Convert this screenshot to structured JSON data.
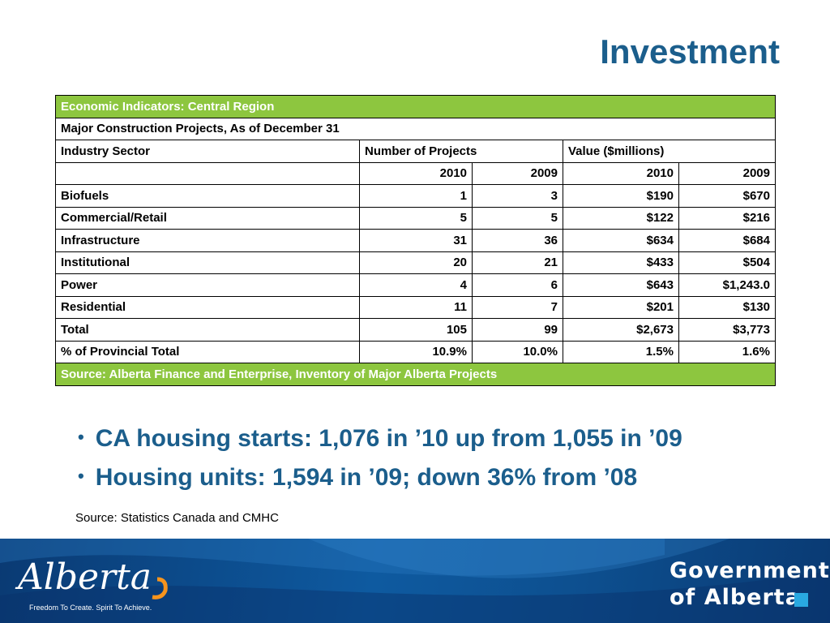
{
  "slide": {
    "title": "Investment"
  },
  "table": {
    "header_title": "Economic Indicators: Central Region",
    "subtitle": "Major Construction Projects, As of December 31",
    "col_sector": "Industry Sector",
    "col_projects": "Number of Projects",
    "col_value": "Value ($millions)",
    "years": [
      "2010",
      "2009",
      "2010",
      "2009"
    ],
    "rows": [
      {
        "sector": "Biofuels",
        "projects_2010": "1",
        "projects_2009": "3",
        "value_2010": "$190",
        "value_2009": "$670"
      },
      {
        "sector": "Commercial/Retail",
        "projects_2010": "5",
        "projects_2009": "5",
        "value_2010": "$122",
        "value_2009": "$216"
      },
      {
        "sector": "Infrastructure",
        "projects_2010": "31",
        "projects_2009": "36",
        "value_2010": "$634",
        "value_2009": "$684"
      },
      {
        "sector": "Institutional",
        "projects_2010": "20",
        "projects_2009": "21",
        "value_2010": "$433",
        "value_2009": "$504"
      },
      {
        "sector": "Power",
        "projects_2010": "4",
        "projects_2009": "6",
        "value_2010": "$643",
        "value_2009": "$1,243.0"
      },
      {
        "sector": "Residential",
        "projects_2010": "11",
        "projects_2009": "7",
        "value_2010": "$201",
        "value_2009": "$130"
      },
      {
        "sector": "Total",
        "projects_2010": "105",
        "projects_2009": "99",
        "value_2010": "$2,673",
        "value_2009": "$3,773"
      },
      {
        "sector": "% of Provincial Total",
        "projects_2010": "10.9%",
        "projects_2009": "10.0%",
        "value_2010": "1.5%",
        "value_2009": "1.6%"
      }
    ],
    "source": "Source: Alberta Finance and Enterprise, Inventory of Major Alberta Projects"
  },
  "bullets": [
    "CA housing starts: 1,076 in ’10 up from 1,055 in ’09",
    "Housing units: 1,594 in ’09; down 36% from ’08"
  ],
  "bullet_marker": "•",
  "source_note": "Source: Statistics Canada and CMHC",
  "footer": {
    "logo_text": "Alberta",
    "tagline": "Freedom To Create. Spirit To Achieve.",
    "gov_line1": "Government",
    "gov_line2": "of Alberta"
  },
  "colors": {
    "title_blue": "#1b5e8c",
    "header_green": "#8dc63f",
    "footer_blue": "#0e5aa0",
    "accent_cyan": "#29a9e1",
    "logo_orange": "#f7941d"
  }
}
